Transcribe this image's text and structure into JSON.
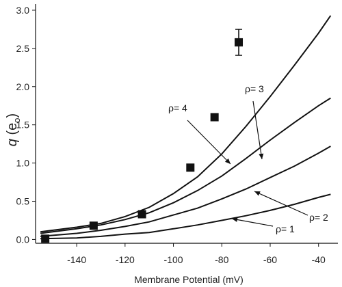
{
  "chart_data": {
    "type": "scatter",
    "title": "",
    "xlabel": "Membrane Potential (mV)",
    "ylabel": {
      "italic": "q",
      "rest_open": " (e",
      "sub": "o",
      "rest_close": ")"
    },
    "xlim": [
      -157,
      -32
    ],
    "ylim": [
      -0.05,
      3.08
    ],
    "xticks": [
      -140,
      -120,
      -100,
      -80,
      -60,
      -40
    ],
    "yticks": [
      0.0,
      0.5,
      1.0,
      1.5,
      2.0,
      2.5,
      3.0
    ],
    "xtick_labels": [
      "-140",
      "-120",
      "-100",
      "-80",
      "-60",
      "-40"
    ],
    "ytick_labels": [
      "0.0",
      "0.5",
      "1.0",
      "1.5",
      "2.0",
      "2.5",
      "3.0"
    ],
    "grid": false,
    "series": [
      {
        "marker": "square",
        "x": [
          -153,
          -133,
          -113,
          -93,
          -83,
          -73
        ],
        "y": [
          0.01,
          0.18,
          0.33,
          0.94,
          1.6,
          2.58
        ],
        "yerr": [
          0,
          0,
          0,
          0,
          0,
          0.17
        ]
      }
    ],
    "curves": [
      {
        "label": "ρ= 4",
        "x": [
          -155,
          -140,
          -130,
          -120,
          -110,
          -100,
          -90,
          -80,
          -70,
          -60,
          -50,
          -40,
          -35
        ],
        "y": [
          0.1,
          0.16,
          0.21,
          0.3,
          0.42,
          0.6,
          0.82,
          1.12,
          1.48,
          1.87,
          2.28,
          2.7,
          2.93
        ]
      },
      {
        "label": "ρ= 3",
        "x": [
          -155,
          -140,
          -130,
          -120,
          -110,
          -100,
          -90,
          -80,
          -70,
          -60,
          -50,
          -40,
          -35
        ],
        "y": [
          0.08,
          0.14,
          0.19,
          0.26,
          0.35,
          0.48,
          0.64,
          0.83,
          1.06,
          1.3,
          1.53,
          1.75,
          1.85
        ]
      },
      {
        "label": "ρ= 2",
        "x": [
          -155,
          -140,
          -130,
          -120,
          -110,
          -100,
          -90,
          -80,
          -70,
          -60,
          -50,
          -40,
          -35
        ],
        "y": [
          0.04,
          0.08,
          0.12,
          0.17,
          0.23,
          0.32,
          0.41,
          0.53,
          0.66,
          0.81,
          0.96,
          1.13,
          1.22
        ]
      },
      {
        "label": "ρ= 1",
        "x": [
          -155,
          -140,
          -130,
          -120,
          -110,
          -100,
          -90,
          -80,
          -70,
          -60,
          -50,
          -40,
          -35
        ],
        "y": [
          0.01,
          0.02,
          0.04,
          0.07,
          0.09,
          0.14,
          0.19,
          0.25,
          0.31,
          0.38,
          0.46,
          0.55,
          0.59
        ]
      }
    ]
  }
}
